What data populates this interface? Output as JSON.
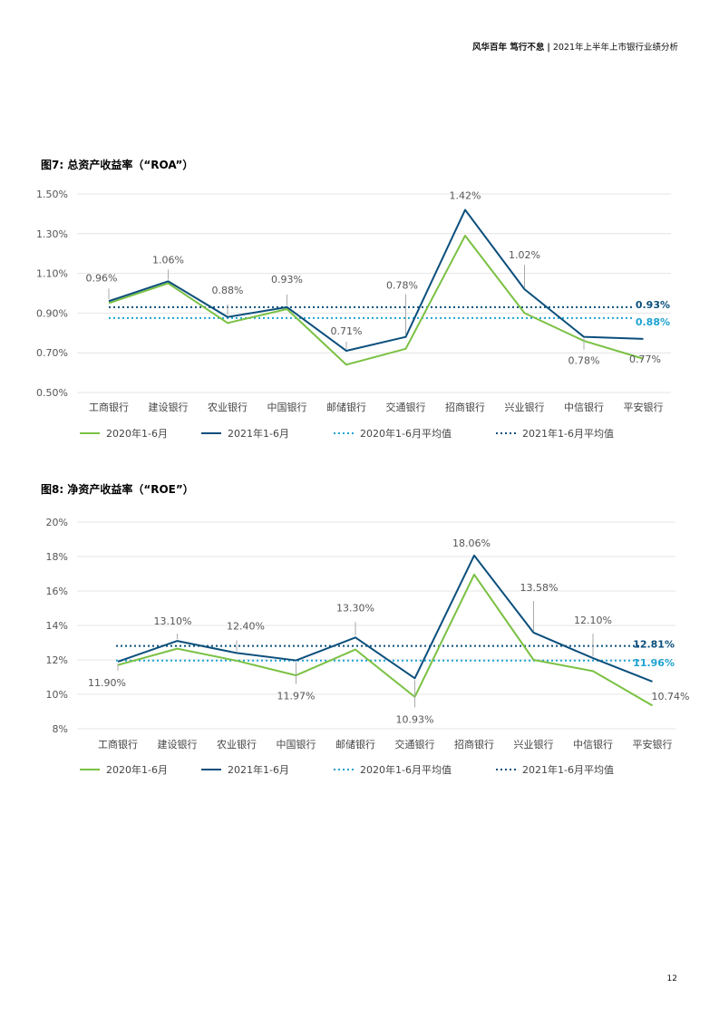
{
  "header": {
    "left": "风华百年 笃行不怠",
    "divider": "|",
    "right": "2021年上半年上市银行业绩分析"
  },
  "page_number": "12",
  "colors": {
    "green": "#7ac143",
    "navy": "#0b4f7c",
    "cyan": "#1ea3d3",
    "dark_dotted": "#0b4f7c",
    "grid": "#e4e4e4",
    "label": "#555555",
    "leader": "#aaaaaa"
  },
  "chart_data": [
    {
      "type": "line",
      "title": "图7: 总资产收益率（“ROA”）",
      "categories": [
        "工商银行",
        "建设银行",
        "农业银行",
        "中国银行",
        "邮储银行",
        "交通银行",
        "招商银行",
        "兴业银行",
        "中信银行",
        "平安银行"
      ],
      "y_ticks": [
        "1.50%",
        "1.30%",
        "1.10%",
        "0.90%",
        "0.70%",
        "0.50%"
      ],
      "ylim": [
        0.5,
        1.5
      ],
      "y_tick_values": [
        1.5,
        1.3,
        1.1,
        0.9,
        0.7,
        0.5
      ],
      "series": [
        {
          "name": "2020年1-6月",
          "style": "solid-green",
          "values": [
            0.95,
            1.05,
            0.85,
            0.92,
            0.64,
            0.72,
            1.29,
            0.9,
            0.76,
            0.67
          ]
        },
        {
          "name": "2021年1-6月",
          "style": "solid-navy",
          "values": [
            0.96,
            1.06,
            0.88,
            0.93,
            0.71,
            0.78,
            1.42,
            1.02,
            0.78,
            0.77
          ]
        },
        {
          "name": "2020年1-6月平均值",
          "style": "dotted-cyan",
          "value": 0.875,
          "end_label": "0.88%"
        },
        {
          "name": "2021年1-6月平均值",
          "style": "dotted-navy",
          "value": 0.93,
          "end_label": "0.93%"
        }
      ],
      "data_labels": [
        "0.96%",
        "1.06%",
        "0.88%",
        "0.93%",
        "0.71%",
        "0.78%",
        "1.42%",
        "1.02%",
        "0.78%",
        "0.77%"
      ],
      "label_positions": [
        "above",
        "above",
        "above",
        "above",
        "above",
        "above",
        "above",
        "above",
        "below",
        "below"
      ],
      "legend": [
        "2020年1-6月",
        "2021年1-6月",
        "2020年1-6月平均值",
        "2021年1-6月平均值"
      ]
    },
    {
      "type": "line",
      "title": "图8: 净资产收益率（“ROE”）",
      "categories": [
        "工商银行",
        "建设银行",
        "农业银行",
        "中国银行",
        "邮储银行",
        "交通银行",
        "招商银行",
        "兴业银行",
        "中信银行",
        "平安银行"
      ],
      "y_ticks": [
        "20%",
        "18%",
        "16%",
        "14%",
        "12%",
        "10%",
        "8%"
      ],
      "ylim": [
        8,
        20
      ],
      "y_tick_values": [
        20,
        18,
        16,
        14,
        12,
        10,
        8
      ],
      "series": [
        {
          "name": "2020年1-6月",
          "style": "solid-green",
          "values": [
            11.7,
            12.65,
            11.95,
            11.1,
            12.6,
            9.85,
            16.95,
            12.0,
            11.35,
            9.35
          ]
        },
        {
          "name": "2021年1-6月",
          "style": "solid-navy",
          "values": [
            11.9,
            13.1,
            12.4,
            11.97,
            13.3,
            10.93,
            18.06,
            13.58,
            12.1,
            10.74
          ]
        },
        {
          "name": "2020年1-6月平均值",
          "style": "dotted-cyan",
          "value": 11.96,
          "end_label": "11.96%"
        },
        {
          "name": "2021年1-6月平均值",
          "style": "dotted-navy",
          "value": 12.81,
          "end_label": "12.81%"
        }
      ],
      "data_labels": [
        "11.90%",
        "13.10%",
        "12.40%",
        "11.97%",
        "13.30%",
        "10.93%",
        "18.06%",
        "13.58%",
        "12.10%",
        "10.74%"
      ],
      "label_positions": [
        "below",
        "above",
        "above",
        "below",
        "above",
        "below",
        "above",
        "above",
        "above",
        "below"
      ],
      "legend": [
        "2020年1-6月",
        "2021年1-6月",
        "2020年1-6月平均值",
        "2021年1-6月平均值"
      ]
    }
  ]
}
